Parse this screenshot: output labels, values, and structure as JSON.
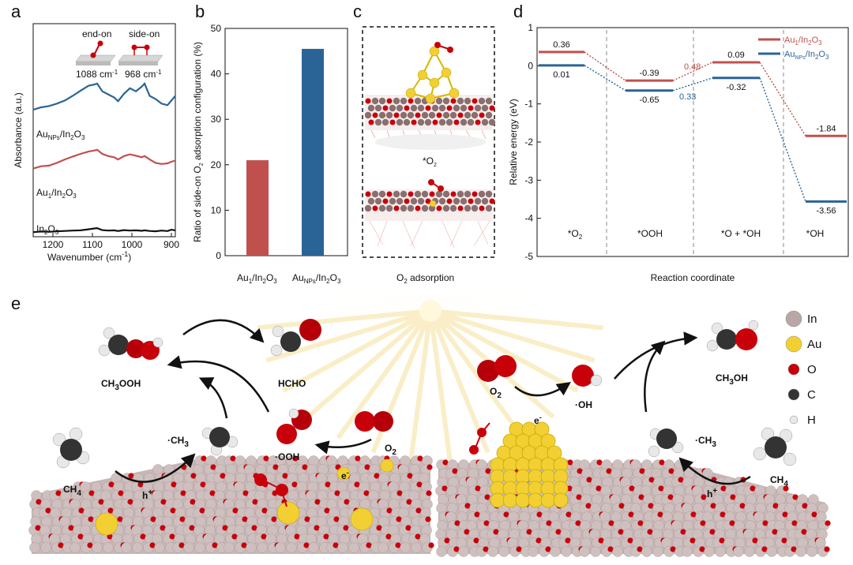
{
  "panel_labels": [
    "a",
    "b",
    "c",
    "d",
    "e"
  ],
  "colors": {
    "au1": "#c0504d",
    "aunps": "#2a6496",
    "in2o3": "#111111",
    "o_atom": "#c8000a",
    "au_atom": "#f2d033",
    "in_atom": "#b9a7a6",
    "c_atom": "#333333",
    "h_atom": "#e8e8e8"
  },
  "panel_a": {
    "insets": {
      "end_on": "end-on",
      "side_on": "side-on",
      "end_on_wn": "1088 cm",
      "side_on_wn": "968 cm",
      "wn_sup": "-1"
    },
    "labels": {
      "aunps": "Au",
      "aunps_sub": "NPs",
      "aunps_tail": "/In",
      "au1": "Au",
      "au1_sub": "1",
      "au1_tail": "/In",
      "in2o3": "In",
      "o_sub": "2",
      "o_sub2": "O",
      "o_sub3": "3"
    },
    "chart_data": {
      "type": "line",
      "xlabel": "Wavenumber  (cm",
      "xlabel_sup": "-1",
      "xlabel_end": ")",
      "ylabel": "Absorbance (a.u.)",
      "xlim": [
        1250,
        890
      ],
      "xticks": [
        1200,
        1100,
        1000,
        900
      ],
      "series": [
        {
          "name": "AuNPs/In2O3",
          "color": "#2a6496",
          "x": [
            1250,
            1230,
            1210,
            1190,
            1170,
            1150,
            1130,
            1110,
            1095,
            1088,
            1075,
            1060,
            1045,
            1035,
            1020,
            1005,
            990,
            975,
            968,
            955,
            940,
            925,
            910,
            900,
            890
          ],
          "y": [
            0.1,
            0.18,
            0.22,
            0.3,
            0.4,
            0.55,
            0.72,
            0.88,
            0.92,
            0.95,
            0.7,
            0.6,
            0.5,
            0.38,
            0.62,
            0.8,
            0.7,
            0.85,
            0.95,
            0.55,
            0.45,
            0.3,
            0.25,
            0.4,
            0.55
          ]
        },
        {
          "name": "Au1/In2O3",
          "color": "#c0504d",
          "x": [
            1250,
            1230,
            1210,
            1190,
            1170,
            1150,
            1130,
            1110,
            1095,
            1088,
            1075,
            1060,
            1045,
            1035,
            1020,
            1005,
            990,
            975,
            968,
            955,
            940,
            925,
            910,
            900,
            890
          ],
          "y": [
            0.05,
            0.15,
            0.18,
            0.3,
            0.45,
            0.58,
            0.7,
            0.8,
            0.85,
            0.88,
            0.7,
            0.6,
            0.55,
            0.45,
            0.6,
            0.68,
            0.62,
            0.55,
            0.6,
            0.45,
            0.3,
            0.25,
            0.28,
            0.35,
            0.4
          ]
        },
        {
          "name": "In2O3",
          "color": "#111111",
          "x": [
            1250,
            1230,
            1210,
            1190,
            1170,
            1150,
            1130,
            1110,
            1095,
            1088,
            1075,
            1060,
            1045,
            1035,
            1020,
            1005,
            990,
            975,
            968,
            955,
            940,
            925,
            910,
            900,
            890
          ],
          "y": [
            0.05,
            0.1,
            0.08,
            0.12,
            0.15,
            0.18,
            0.2,
            0.28,
            0.35,
            0.38,
            0.22,
            0.18,
            0.2,
            0.15,
            0.22,
            0.18,
            0.2,
            0.16,
            0.2,
            0.15,
            0.12,
            0.18,
            0.14,
            0.25,
            0.2
          ]
        }
      ]
    }
  },
  "panel_b": {
    "chart_data": {
      "type": "bar",
      "ylabel": "Ratio of side-on O",
      "ylabel_sub": "2",
      "ylabel_end": " adsorption configuration (%)",
      "ylim": [
        0,
        50
      ],
      "yticks": [
        0,
        10,
        20,
        30,
        40,
        50
      ],
      "categories": [
        "Au1/In2O3",
        "AuNPs/In2O3"
      ],
      "values": [
        21,
        45.5
      ],
      "bar_colors": [
        "#c0504d",
        "#2a6496"
      ]
    },
    "cat_labels": [
      {
        "main": "Au",
        "sub": "1",
        "tail": "/In",
        "sub2": "2",
        "o": "O",
        "sub3": "3"
      },
      {
        "main": "Au",
        "sub": "NPs",
        "tail": "/In",
        "sub2": "2",
        "o": "O",
        "sub3": "3"
      }
    ]
  },
  "panel_c": {
    "star_o2": "*O",
    "star_o2_sub": "2",
    "caption": "O",
    "caption_sub": "2",
    "caption_tail": " adsorption"
  },
  "panel_d": {
    "chart_data": {
      "type": "line",
      "xlabel": "Reaction coordinate",
      "ylabel": "Relative energy (eV)",
      "ylim": [
        -5,
        1
      ],
      "yticks": [
        1,
        0,
        -1,
        -2,
        -3,
        -4,
        -5
      ],
      "categories": [
        "*O2",
        "*OOH",
        "*O + *OH",
        "*OH"
      ],
      "series": [
        {
          "name": "Au1/In2O3",
          "color": "#c0504d",
          "values": [
            0.36,
            -0.39,
            0.09,
            -1.84
          ],
          "labels": [
            "0.36",
            "-0.39",
            "0.09",
            "-1.84"
          ]
        },
        {
          "name": "AuNPs/In2O3",
          "color": "#2a6496",
          "values": [
            0.01,
            -0.65,
            -0.32,
            -3.56
          ],
          "labels": [
            "0.01",
            "-0.65",
            "-0.32",
            "-3.56"
          ]
        }
      ],
      "annotations": [
        {
          "text": "0.48",
          "color": "#c0504d"
        },
        {
          "text": "0.33",
          "color": "#2a6496"
        }
      ]
    },
    "legend": [
      {
        "main": "Au",
        "sub": "1",
        "tail": "/In",
        "sub2": "2",
        "o": "O",
        "sub3": "3"
      },
      {
        "main": "Au",
        "sub": "NPs",
        "tail": "/In",
        "sub2": "2",
        "o": "O",
        "sub3": "3"
      }
    ],
    "cat_display": [
      {
        "main": "*O",
        "sub": "2"
      },
      {
        "main": "*OOH",
        "sub": ""
      },
      {
        "main": "*O + *OH",
        "sub": ""
      },
      {
        "main": "*OH",
        "sub": ""
      }
    ]
  },
  "panel_e": {
    "left": {
      "ch3ooh": "CH",
      "ch3ooh_sub": "3",
      "ch3ooh_tail": "OOH",
      "hcho": "HCHO",
      "ch3": "·CH",
      "ch3_sub": "3",
      "ooh": "·OOH",
      "o2": "O",
      "o2_sub": "2",
      "ch4": "CH",
      "ch4_sub": "4",
      "hplus": "h",
      "hplus_sup": "+",
      "eminus": "e",
      "eminus_sup": "-"
    },
    "right": {
      "o2": "O",
      "o2_sub": "2",
      "oh": "·OH",
      "ch3oh": "CH",
      "ch3oh_sub": "3",
      "ch3oh_tail": "OH",
      "ch3": "·CH",
      "ch3_sub": "3",
      "ch4": "CH",
      "ch4_sub": "4",
      "hplus": "h",
      "hplus_sup": "+",
      "eminus": "e",
      "eminus_sup": "-"
    },
    "legend": [
      {
        "label": "In",
        "color": "#b9a7a6"
      },
      {
        "label": "Au",
        "color": "#f2d033"
      },
      {
        "label": "O",
        "color": "#c8000a"
      },
      {
        "label": "C",
        "color": "#333333"
      },
      {
        "label": "H",
        "color": "#e8e8e8"
      }
    ]
  }
}
